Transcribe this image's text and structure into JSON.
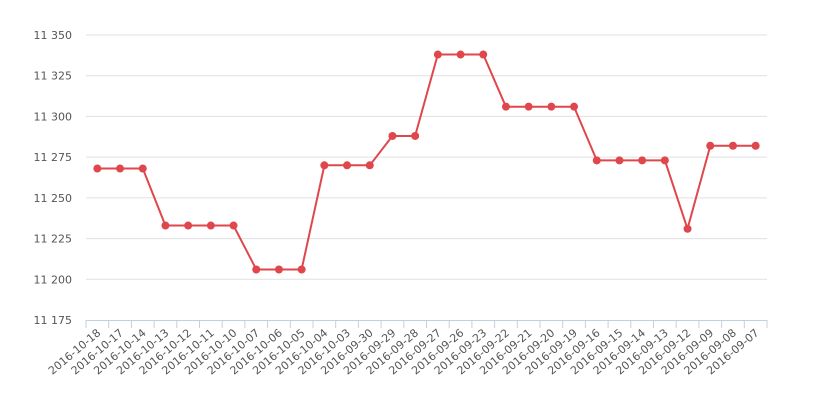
{
  "chart_data": {
    "type": "line",
    "categories": [
      "2016-10-18",
      "2016-10-17",
      "2016-10-14",
      "2016-10-13",
      "2016-10-12",
      "2016-10-11",
      "2016-10-10",
      "2016-10-07",
      "2016-10-06",
      "2016-10-05",
      "2016-10-04",
      "2016-10-03",
      "2016-09-30",
      "2016-09-29",
      "2016-09-28",
      "2016-09-27",
      "2016-09-26",
      "2016-09-23",
      "2016-09-22",
      "2016-09-21",
      "2016-09-20",
      "2016-09-19",
      "2016-09-16",
      "2016-09-15",
      "2016-09-14",
      "2016-09-13",
      "2016-09-12",
      "2016-09-09",
      "2016-09-08",
      "2016-09-07"
    ],
    "values": [
      11268,
      11268,
      11268,
      11233,
      11233,
      11233,
      11233,
      11206,
      11206,
      11206,
      11270,
      11270,
      11270,
      11288,
      11288,
      11338,
      11338,
      11338,
      11306,
      11306,
      11306,
      11306,
      11273,
      11273,
      11273,
      11273,
      11231,
      11282,
      11282,
      11282
    ],
    "color": "#e0474c",
    "ylim": [
      11175,
      11350
    ],
    "yticks": [
      {
        "value": 11175,
        "label": "11 175"
      },
      {
        "value": 11200,
        "label": "11 200"
      },
      {
        "value": 11225,
        "label": "11 225"
      },
      {
        "value": 11250,
        "label": "11 250"
      },
      {
        "value": 11275,
        "label": "11 275"
      },
      {
        "value": 11300,
        "label": "11 300"
      },
      {
        "value": 11325,
        "label": "11 325"
      },
      {
        "value": 11350,
        "label": "11 350"
      }
    ],
    "grid": true
  }
}
